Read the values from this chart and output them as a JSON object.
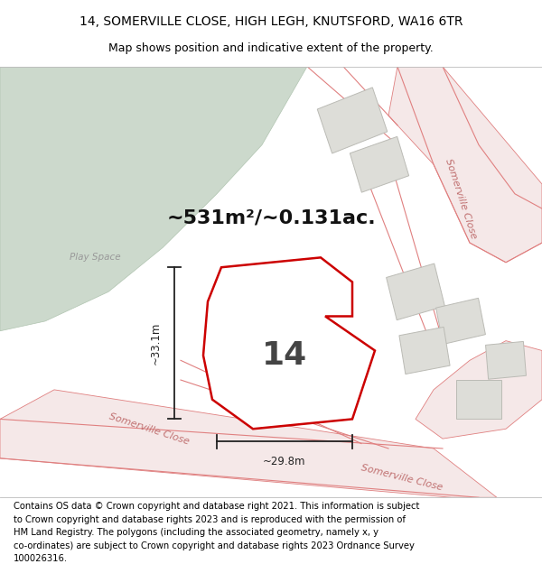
{
  "title_line1": "14, SOMERVILLE CLOSE, HIGH LEGH, KNUTSFORD, WA16 6TR",
  "title_line2": "Map shows position and indicative extent of the property.",
  "area_text": "~531m²/~0.131ac.",
  "label_number": "14",
  "label_play_space": "Play Space",
  "dim_vertical": "~33.1m",
  "dim_horizontal": "~29.8m",
  "road_label_bottom": "Somerville Close",
  "road_label_right": "Somerville Close",
  "road_label_bottom_right": "Somerville Close",
  "footer_text": "Contains OS data © Crown copyright and database right 2021. This information is subject to Crown copyright and database rights 2023 and is reproduced with the permission of\nHM Land Registry. The polygons (including the associated geometry, namely x, y\nco-ordinates) are subject to Crown copyright and database rights 2023 Ordnance Survey\n100026316.",
  "map_bg": "#f0eeeb",
  "white_bg": "#ffffff",
  "green_area_color": "#ccd9cc",
  "green_edge_color": "#b0c4b0",
  "property_fill": "#ffffff",
  "property_outline_color": "#cc0000",
  "road_fill": "#f5e8e8",
  "road_edge_color": "#e08080",
  "building_fill": "#ddddd8",
  "building_edge": "#bbbbb5",
  "dim_line_color": "#222222",
  "area_text_color": "#111111",
  "label_color": "#444444",
  "play_space_color": "#999999",
  "road_text_color": "#c07070"
}
